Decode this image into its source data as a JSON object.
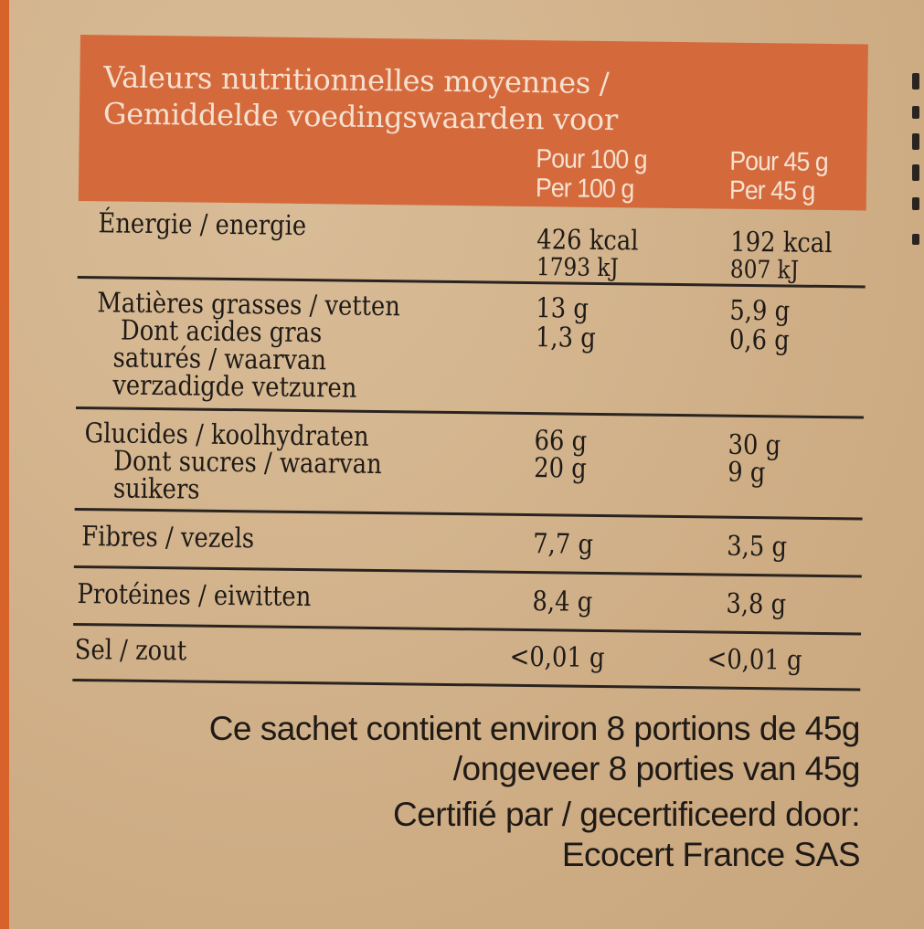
{
  "header": {
    "title_fr": "Valeurs nutritionnelles moyennes /",
    "title_nl": "Gemiddelde voedingswaarden voor",
    "col_100_fr": "Pour 100 g",
    "col_100_nl": "Per 100 g",
    "col_45_fr": "Pour 45 g",
    "col_45_nl": "Per 45 g"
  },
  "nutrients": {
    "energy": {
      "name": "Énergie / energie",
      "v100_kcal": "426 kcal",
      "v100_kj": "1793 kJ",
      "v45_kcal": "192 kcal",
      "v45_kj": "807 kJ"
    },
    "fat": {
      "name": "Matières grasses / vetten",
      "sub1": "Dont acides gras",
      "sub2": "saturés / waarvan",
      "sub3": "verzadigde vetzuren",
      "v100": "13 g",
      "v100_sat": "1,3 g",
      "v45": "5,9 g",
      "v45_sat": "0,6 g"
    },
    "carbs": {
      "name": "Glucides / koolhydraten",
      "sub1": "Dont sucres / waarvan",
      "sub2": "suikers",
      "v100": "66 g",
      "v100_sugar": "20 g",
      "v45": "30 g",
      "v45_sugar": "9 g"
    },
    "fibre": {
      "name": "Fibres / vezels",
      "v100": "7,7 g",
      "v45": "3,5 g"
    },
    "protein": {
      "name": "Protéines / eiwitten",
      "v100": "8,4 g",
      "v45": "3,8 g"
    },
    "salt": {
      "name": "Sel / zout",
      "v100": "<0,01 g",
      "v45": "<0,01 g"
    }
  },
  "footer": {
    "line1": "Ce sachet contient environ 8 portions de 45g",
    "line2": "/ongeveer 8 porties van 45g",
    "line3": "Certifié par / gecertificeerd door:",
    "line4": "Ecocert France SAS"
  },
  "colors": {
    "header_bg": "#d46a3c",
    "header_text": "#f6e0cf",
    "paper": "#d2b48f"
  }
}
